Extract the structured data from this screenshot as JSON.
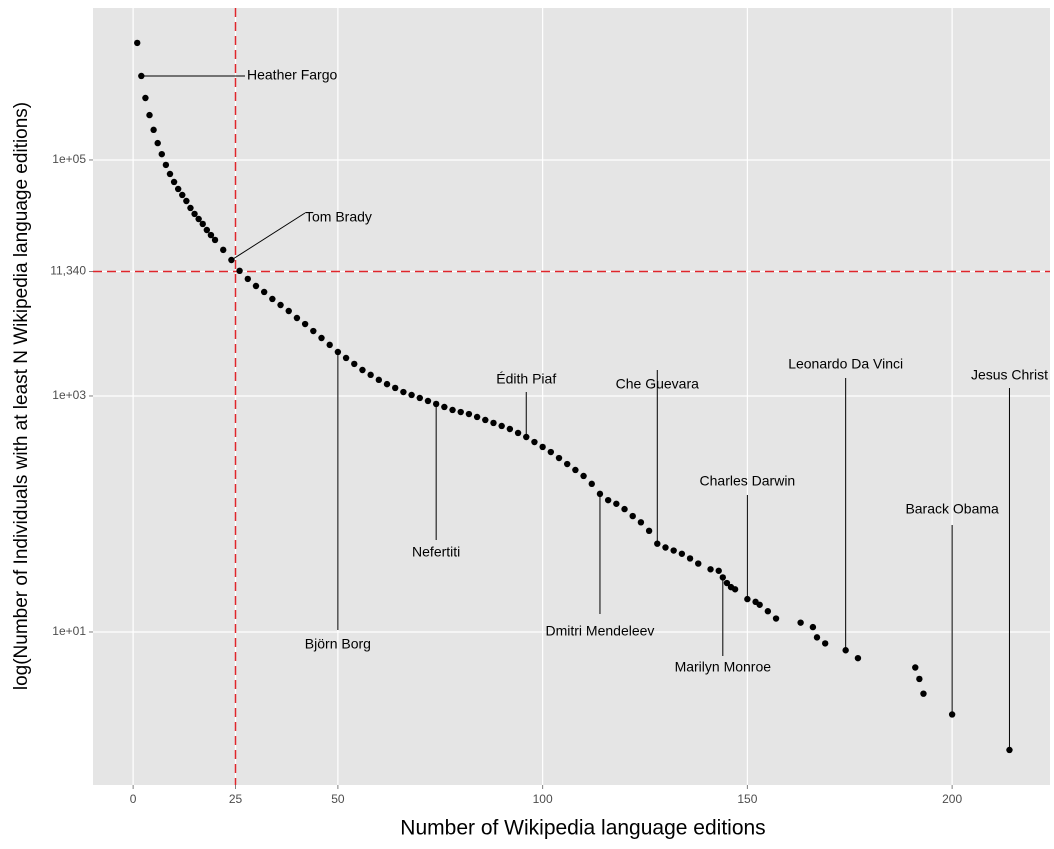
{
  "chart_data": {
    "type": "scatter",
    "x_label": "Number of Wikipedia language editions",
    "y_label": "log(Number of Individuals with at least N Wikipedia language editions)",
    "color": "#000000",
    "log_y": true,
    "grid": true,
    "xlim": [
      -9.8,
      223.9
    ],
    "ylim": [
      0.505,
      1940000
    ],
    "xticks": [
      0,
      25,
      50,
      100,
      150,
      200
    ],
    "yticks": [
      {
        "value": 10,
        "label": "1e+01"
      },
      {
        "value": 1000,
        "label": "1e+03"
      },
      {
        "value": 11340,
        "label": "11,340"
      },
      {
        "value": 100000,
        "label": "1e+05"
      }
    ],
    "reference_lines": {
      "x": 25,
      "y": 11340,
      "color": "#e0262b"
    },
    "x": [
      1,
      2,
      3,
      4,
      5,
      6,
      7,
      8,
      9,
      10,
      11,
      12,
      13,
      14,
      15,
      16,
      17,
      18,
      19,
      20,
      22,
      24,
      26,
      28,
      30,
      32,
      34,
      36,
      38,
      40,
      42,
      44,
      46,
      48,
      50,
      52,
      54,
      56,
      58,
      60,
      62,
      64,
      66,
      68,
      70,
      72,
      74,
      76,
      78,
      80,
      82,
      84,
      86,
      88,
      90,
      92,
      94,
      96,
      98,
      100,
      102,
      104,
      106,
      108,
      110,
      112,
      114,
      116,
      118,
      120,
      122,
      124,
      126,
      128,
      130,
      132,
      134,
      136,
      138,
      141,
      143,
      144,
      145,
      146,
      147,
      150,
      152,
      153,
      155,
      157,
      163,
      166,
      167,
      169,
      174,
      177,
      191,
      192,
      193,
      200,
      214
    ],
    "values": [
      982000,
      515000,
      335000,
      240000,
      180000,
      139000,
      112000,
      90800,
      76100,
      65100,
      56800,
      50500,
      44900,
      39200,
      34900,
      31600,
      28700,
      25500,
      23100,
      21000,
      17300,
      14200,
      11500,
      9820,
      8550,
      7610,
      6640,
      5900,
      5250,
      4580,
      4070,
      3550,
      3100,
      2710,
      2360,
      2100,
      1870,
      1660,
      1510,
      1370,
      1260,
      1170,
      1080,
      1020,
      962,
      907,
      856,
      807,
      761,
      731,
      703,
      664,
      626,
      591,
      557,
      525,
      486,
      449,
      407,
      370,
      335,
      298,
      265,
      236,
      210,
      180,
      148,
      131,
      122,
      110,
      96,
      85,
      72,
      56,
      52,
      49,
      46,
      42,
      38,
      34,
      33,
      29,
      26,
      24,
      23,
      19,
      18,
      17,
      15,
      13,
      12,
      11,
      9,
      8,
      7,
      6,
      5,
      4,
      3,
      2,
      1
    ],
    "annotations": [
      {
        "text": "Heather Fargo",
        "x": 2
      },
      {
        "text": "Tom Brady",
        "x": 24
      },
      {
        "text": "Björn Borg",
        "x": 50
      },
      {
        "text": "Nefertiti",
        "x": 74
      },
      {
        "text": "Édith Piaf",
        "x": 96
      },
      {
        "text": "Dmitri Mendeleev",
        "x": 114
      },
      {
        "text": "Che Guevara",
        "x": 128
      },
      {
        "text": "Marilyn Monroe",
        "x": 144
      },
      {
        "text": "Charles Darwin",
        "x": 150
      },
      {
        "text": "Leonardo Da Vinci",
        "x": 174
      },
      {
        "text": "Barack Obama",
        "x": 200
      },
      {
        "text": "Jesus Christ",
        "x": 214
      }
    ]
  }
}
